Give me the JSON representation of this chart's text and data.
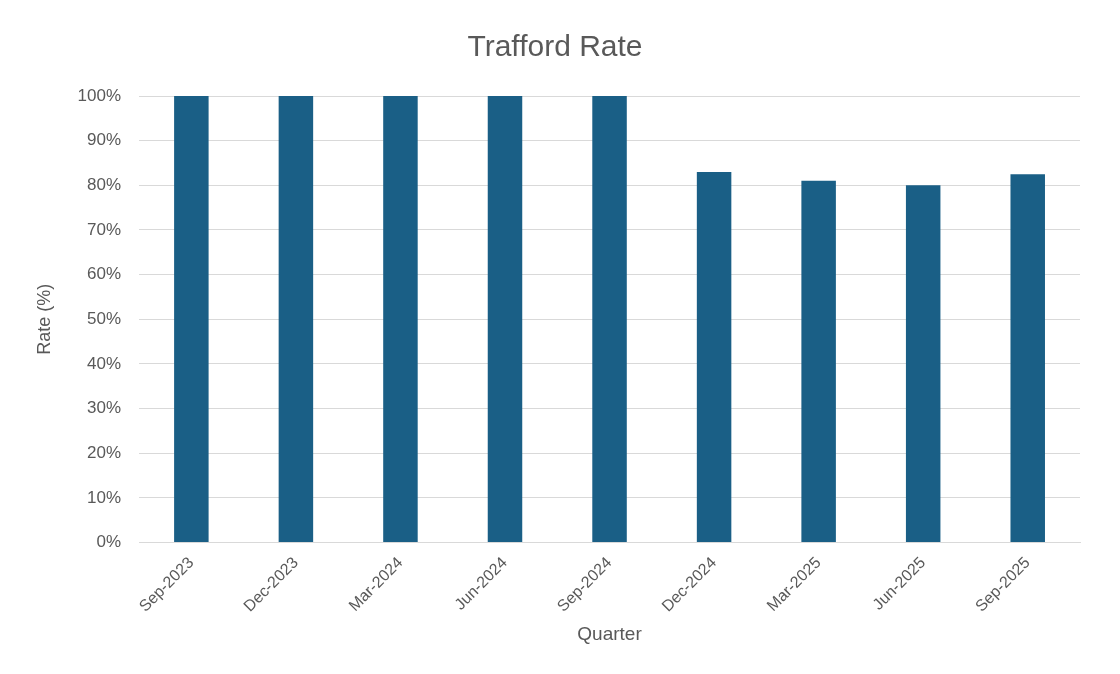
{
  "chart_data": {
    "type": "bar",
    "title": "Trafford Rate",
    "xlabel": "Quarter",
    "ylabel": "Rate (%)",
    "categories": [
      "Sep-2023",
      "Dec-2023",
      "Mar-2024",
      "Jun-2024",
      "Sep-2024",
      "Dec-2024",
      "Mar-2025",
      "Jun-2025",
      "Sep-2025"
    ],
    "values": [
      100,
      100,
      100,
      100,
      100,
      83,
      81,
      80,
      82.5
    ],
    "color": "#1a5f86",
    "ylim": [
      0,
      100
    ],
    "yticks": [
      {
        "value": 0,
        "label": "0%"
      },
      {
        "value": 10,
        "label": "10%"
      },
      {
        "value": 20,
        "label": "20%"
      },
      {
        "value": 30,
        "label": "30%"
      },
      {
        "value": 40,
        "label": "40%"
      },
      {
        "value": 50,
        "label": "50%"
      },
      {
        "value": 60,
        "label": "60%"
      },
      {
        "value": 70,
        "label": "70%"
      },
      {
        "value": 80,
        "label": "80%"
      },
      {
        "value": 90,
        "label": "90%"
      },
      {
        "value": 100,
        "label": "100%"
      }
    ],
    "grid": "y",
    "legend": false
  }
}
